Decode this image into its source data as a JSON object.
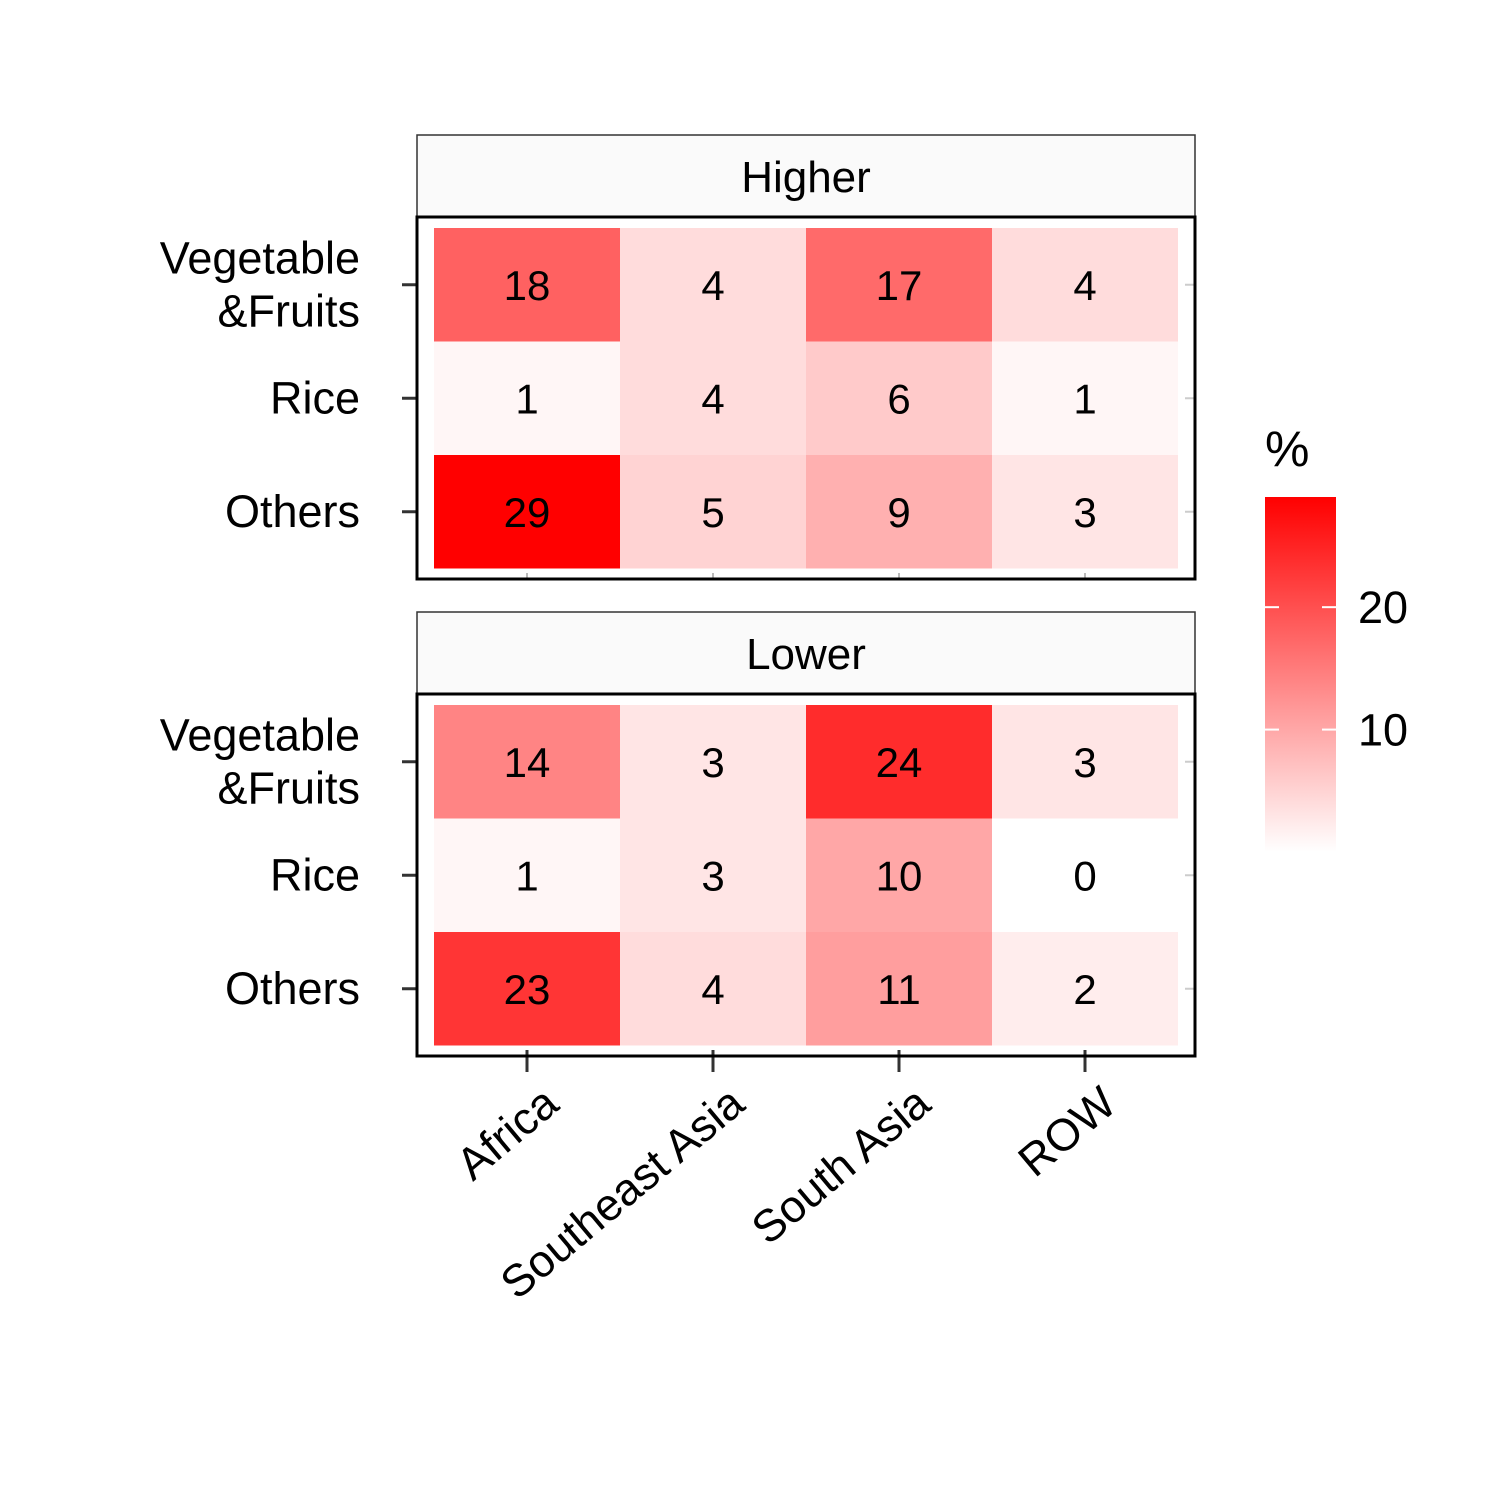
{
  "chart_data": {
    "type": "heatmap",
    "legend": {
      "title": "%",
      "ticks": [
        10,
        20
      ],
      "range": [
        0,
        29
      ],
      "low_color": "#ffffff",
      "high_color": "#ff0000",
      "position": "right"
    },
    "x_categories": [
      "Africa",
      "Southeast Asia",
      "South Asia",
      "ROW"
    ],
    "y_categories": [
      [
        "Vegetable",
        "&Fruits"
      ],
      [
        "Rice"
      ],
      [
        "Others"
      ]
    ],
    "panels": [
      {
        "label": "Higher",
        "values": [
          [
            18,
            4,
            17,
            4
          ],
          [
            1,
            4,
            6,
            1
          ],
          [
            29,
            5,
            9,
            3
          ]
        ]
      },
      {
        "label": "Lower",
        "values": [
          [
            14,
            3,
            24,
            3
          ],
          [
            1,
            3,
            10,
            0
          ],
          [
            23,
            4,
            11,
            2
          ]
        ]
      }
    ]
  }
}
